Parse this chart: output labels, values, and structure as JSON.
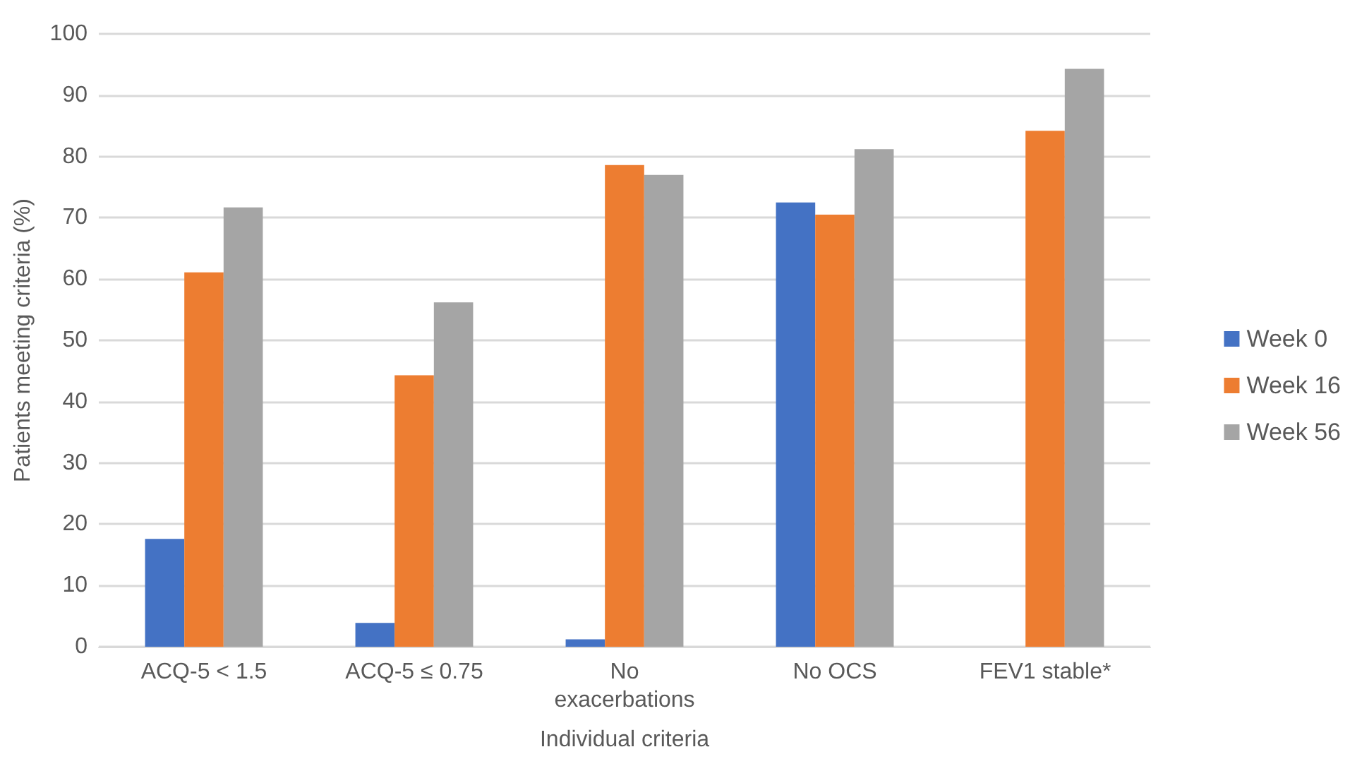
{
  "chart_data": {
    "type": "bar",
    "xlabel": "Individual criteria",
    "ylabel": "Patients meeting criteria (%)",
    "categories": [
      "ACQ-5 < 1.5",
      "ACQ-5 ≤ 0.75",
      "No exacerbations",
      "No OCS",
      "FEV1 stable*"
    ],
    "series": [
      {
        "name": "Week 0",
        "color": "#4472c4",
        "values": [
          17.6,
          3.9,
          1.2,
          72.5,
          null
        ]
      },
      {
        "name": "Week 16",
        "color": "#ed7d31",
        "values": [
          61.1,
          44.3,
          78.6,
          70.5,
          84.2
        ]
      },
      {
        "name": "Week 56",
        "color": "#a5a5a5",
        "values": [
          71.7,
          56.2,
          77.0,
          81.2,
          94.3
        ]
      }
    ],
    "ylim": [
      0,
      100
    ],
    "yticks": [
      0,
      10,
      20,
      30,
      40,
      50,
      60,
      70,
      80,
      90,
      100
    ],
    "grid": "y",
    "legend": "right"
  }
}
